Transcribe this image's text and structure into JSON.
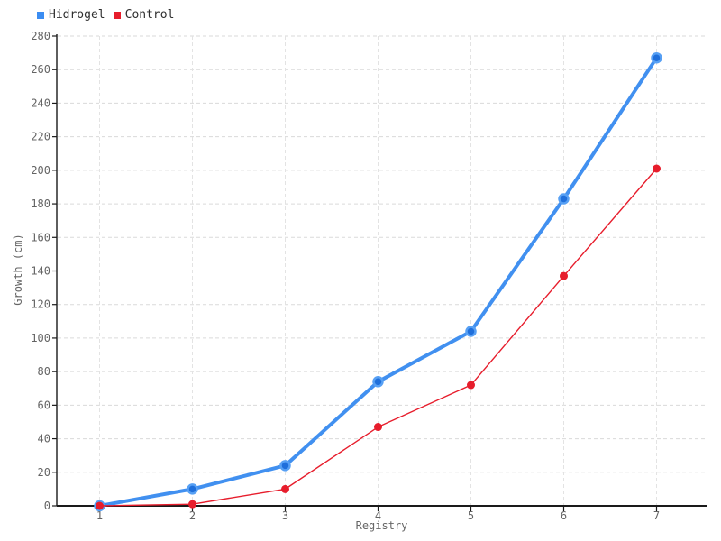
{
  "legend": {
    "items": [
      {
        "label": "Hidrogel",
        "color": "#3b8df2"
      },
      {
        "label": "Control",
        "color": "#e71d2c"
      }
    ]
  },
  "axes": {
    "x_title": "Registry",
    "y_title": "Growth (cm)"
  },
  "chart_data": {
    "type": "line",
    "x": [
      1,
      2,
      3,
      4,
      5,
      6,
      7
    ],
    "x_tick_labels": [
      "1",
      "2",
      "3",
      "4",
      "5",
      "6",
      "7"
    ],
    "y_tick_labels": [
      "0",
      "20",
      "40",
      "60",
      "80",
      "100",
      "120",
      "140",
      "160",
      "180",
      "200",
      "220",
      "240",
      "260",
      "280"
    ],
    "series": [
      {
        "name": "Hidrogel",
        "values": [
          0,
          10,
          24,
          74,
          104,
          183,
          267
        ],
        "line_color": "#4190f0",
        "line_width": 4,
        "marker_fill": "#1f6fdb",
        "marker_stroke": "#57a0f4",
        "marker_stroke_width": 2.5,
        "marker_radius": 5
      },
      {
        "name": "Control",
        "values": [
          0,
          1,
          10,
          47,
          72,
          137,
          201
        ],
        "line_color": "#e71d2c",
        "line_width": 1.4,
        "marker_fill": "#e71d2c",
        "marker_stroke": "#e71d2c",
        "marker_stroke_width": 0,
        "marker_radius": 4.5
      }
    ],
    "title": "",
    "xlabel": "Registry",
    "ylabel": "Growth (cm)",
    "xlim": [
      0.54,
      7.54
    ],
    "ylim": [
      0,
      280
    ],
    "ytick_step": 20,
    "grid": true,
    "legend_position": "top-left",
    "colors": {
      "axis": "#1a1a1a",
      "grid_h": "#dadada",
      "grid_v": "#e3e3e3",
      "tick_label": "#646464"
    }
  }
}
